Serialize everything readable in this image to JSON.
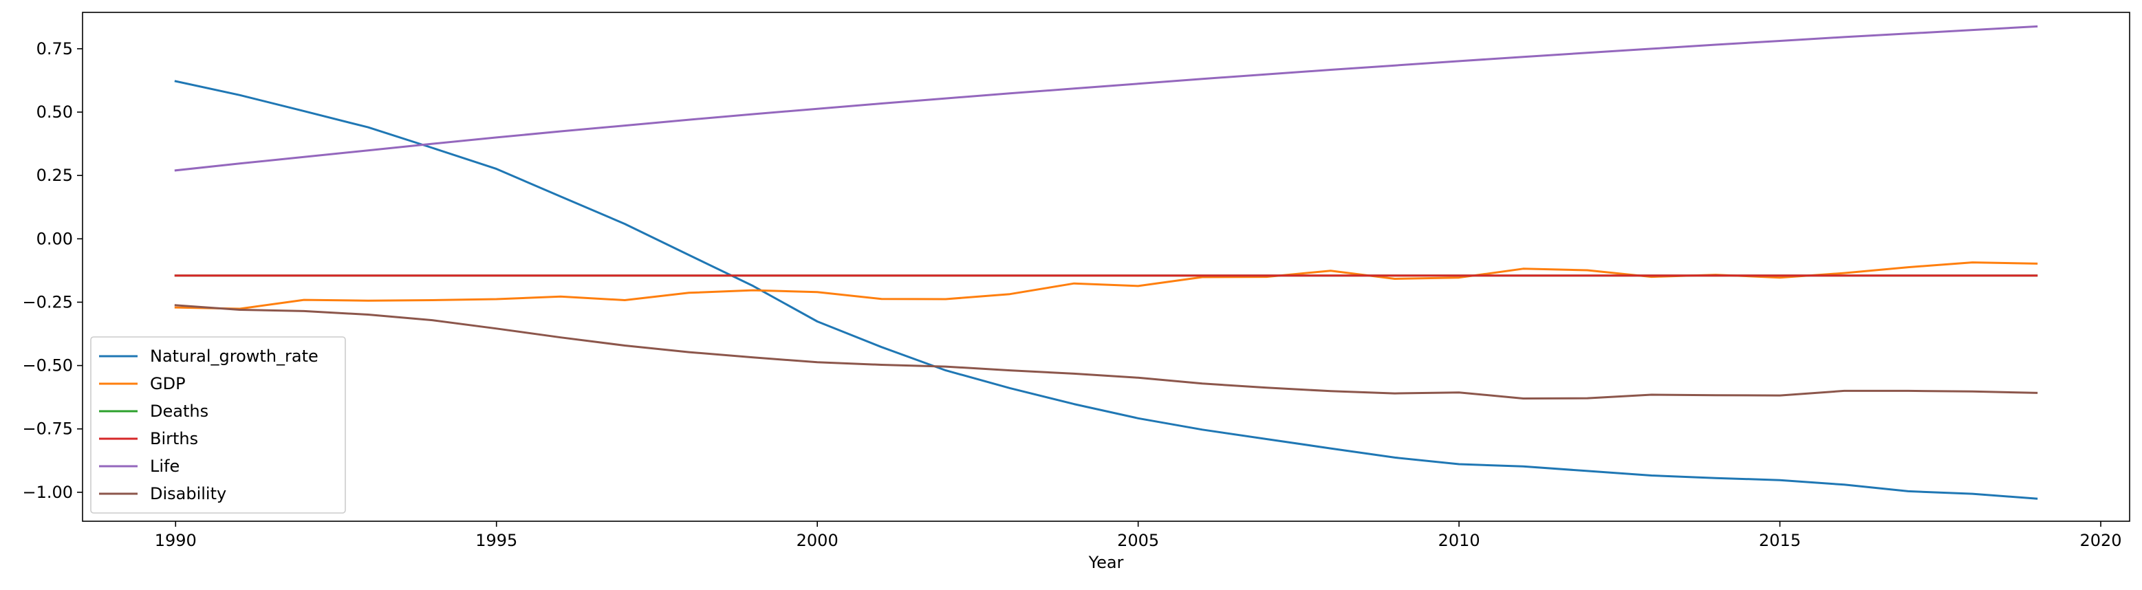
{
  "chart_data": {
    "type": "line",
    "xlabel": "Year",
    "ylabel": "",
    "xlim": [
      1988.55,
      2020.45
    ],
    "ylim": [
      -1.1143,
      0.8935
    ],
    "xticks": [
      1990,
      1995,
      2000,
      2005,
      2010,
      2015,
      2020
    ],
    "yticks": [
      {
        "value": 0.75,
        "label": "0.75"
      },
      {
        "value": 0.5,
        "label": "0.50"
      },
      {
        "value": 0.25,
        "label": "0.25"
      },
      {
        "value": 0.0,
        "label": "0.00"
      },
      {
        "value": -0.25,
        "label": "−0.25"
      },
      {
        "value": -0.5,
        "label": "−0.50"
      },
      {
        "value": -0.75,
        "label": "−0.75"
      },
      {
        "value": -1.0,
        "label": "−1.00"
      }
    ],
    "legend_position": "lower-left",
    "x": [
      1990,
      1991,
      1992,
      1993,
      1994,
      1995,
      1996,
      1997,
      1998,
      1999,
      2000,
      2001,
      2002,
      2003,
      2004,
      2005,
      2006,
      2007,
      2008,
      2009,
      2010,
      2011,
      2012,
      2013,
      2014,
      2015,
      2016,
      2017,
      2018,
      2019
    ],
    "series": [
      {
        "name": "Natural_growth_rate",
        "color": "#1f77b4",
        "values": [
          0.622,
          0.567,
          0.504,
          0.44,
          0.359,
          0.276,
          0.167,
          0.059,
          -0.064,
          -0.186,
          -0.326,
          -0.427,
          -0.519,
          -0.589,
          -0.652,
          -0.708,
          -0.753,
          -0.79,
          -0.827,
          -0.863,
          -0.889,
          -0.898,
          -0.916,
          -0.934,
          -0.944,
          -0.952,
          -0.97,
          -0.996,
          -1.006,
          -1.025
        ]
      },
      {
        "name": "GDP",
        "color": "#ff7f0e",
        "values": [
          -0.271,
          -0.276,
          -0.241,
          -0.244,
          -0.242,
          -0.238,
          -0.228,
          -0.242,
          -0.213,
          -0.203,
          -0.21,
          -0.237,
          -0.238,
          -0.218,
          -0.176,
          -0.186,
          -0.151,
          -0.15,
          -0.126,
          -0.158,
          -0.153,
          -0.118,
          -0.124,
          -0.15,
          -0.142,
          -0.153,
          -0.135,
          -0.112,
          -0.093,
          -0.098
        ]
      },
      {
        "name": "Deaths",
        "color": "#2ca02c",
        "values": [
          -0.145,
          -0.145,
          -0.145,
          -0.145,
          -0.145,
          -0.145,
          -0.145,
          -0.145,
          -0.145,
          -0.145,
          -0.145,
          -0.145,
          -0.145,
          -0.145,
          -0.145,
          -0.145,
          -0.145,
          -0.145,
          -0.145,
          -0.145,
          -0.145,
          -0.145,
          -0.145,
          -0.145,
          -0.145,
          -0.145,
          -0.145,
          -0.145,
          -0.145,
          -0.145
        ]
      },
      {
        "name": "Births",
        "color": "#d62728",
        "values": [
          -0.145,
          -0.145,
          -0.145,
          -0.145,
          -0.145,
          -0.145,
          -0.145,
          -0.145,
          -0.145,
          -0.145,
          -0.145,
          -0.145,
          -0.145,
          -0.145,
          -0.145,
          -0.145,
          -0.145,
          -0.145,
          -0.145,
          -0.145,
          -0.145,
          -0.145,
          -0.145,
          -0.145,
          -0.145,
          -0.145,
          -0.145,
          -0.145,
          -0.145,
          -0.145
        ]
      },
      {
        "name": "Life",
        "color": "#9467bd",
        "values": [
          0.27,
          0.297,
          0.323,
          0.349,
          0.375,
          0.4,
          0.424,
          0.447,
          0.47,
          0.492,
          0.513,
          0.534,
          0.554,
          0.574,
          0.593,
          0.612,
          0.631,
          0.649,
          0.667,
          0.684,
          0.701,
          0.718,
          0.734,
          0.75,
          0.766,
          0.781,
          0.796,
          0.81,
          0.824,
          0.838
        ]
      },
      {
        "name": "Disability",
        "color": "#8c564b",
        "values": [
          -0.262,
          -0.28,
          -0.285,
          -0.299,
          -0.321,
          -0.354,
          -0.389,
          -0.421,
          -0.447,
          -0.468,
          -0.487,
          -0.497,
          -0.504,
          -0.519,
          -0.532,
          -0.548,
          -0.571,
          -0.587,
          -0.601,
          -0.61,
          -0.606,
          -0.63,
          -0.629,
          -0.615,
          -0.617,
          -0.618,
          -0.6,
          -0.6,
          -0.602,
          -0.608
        ]
      }
    ]
  }
}
